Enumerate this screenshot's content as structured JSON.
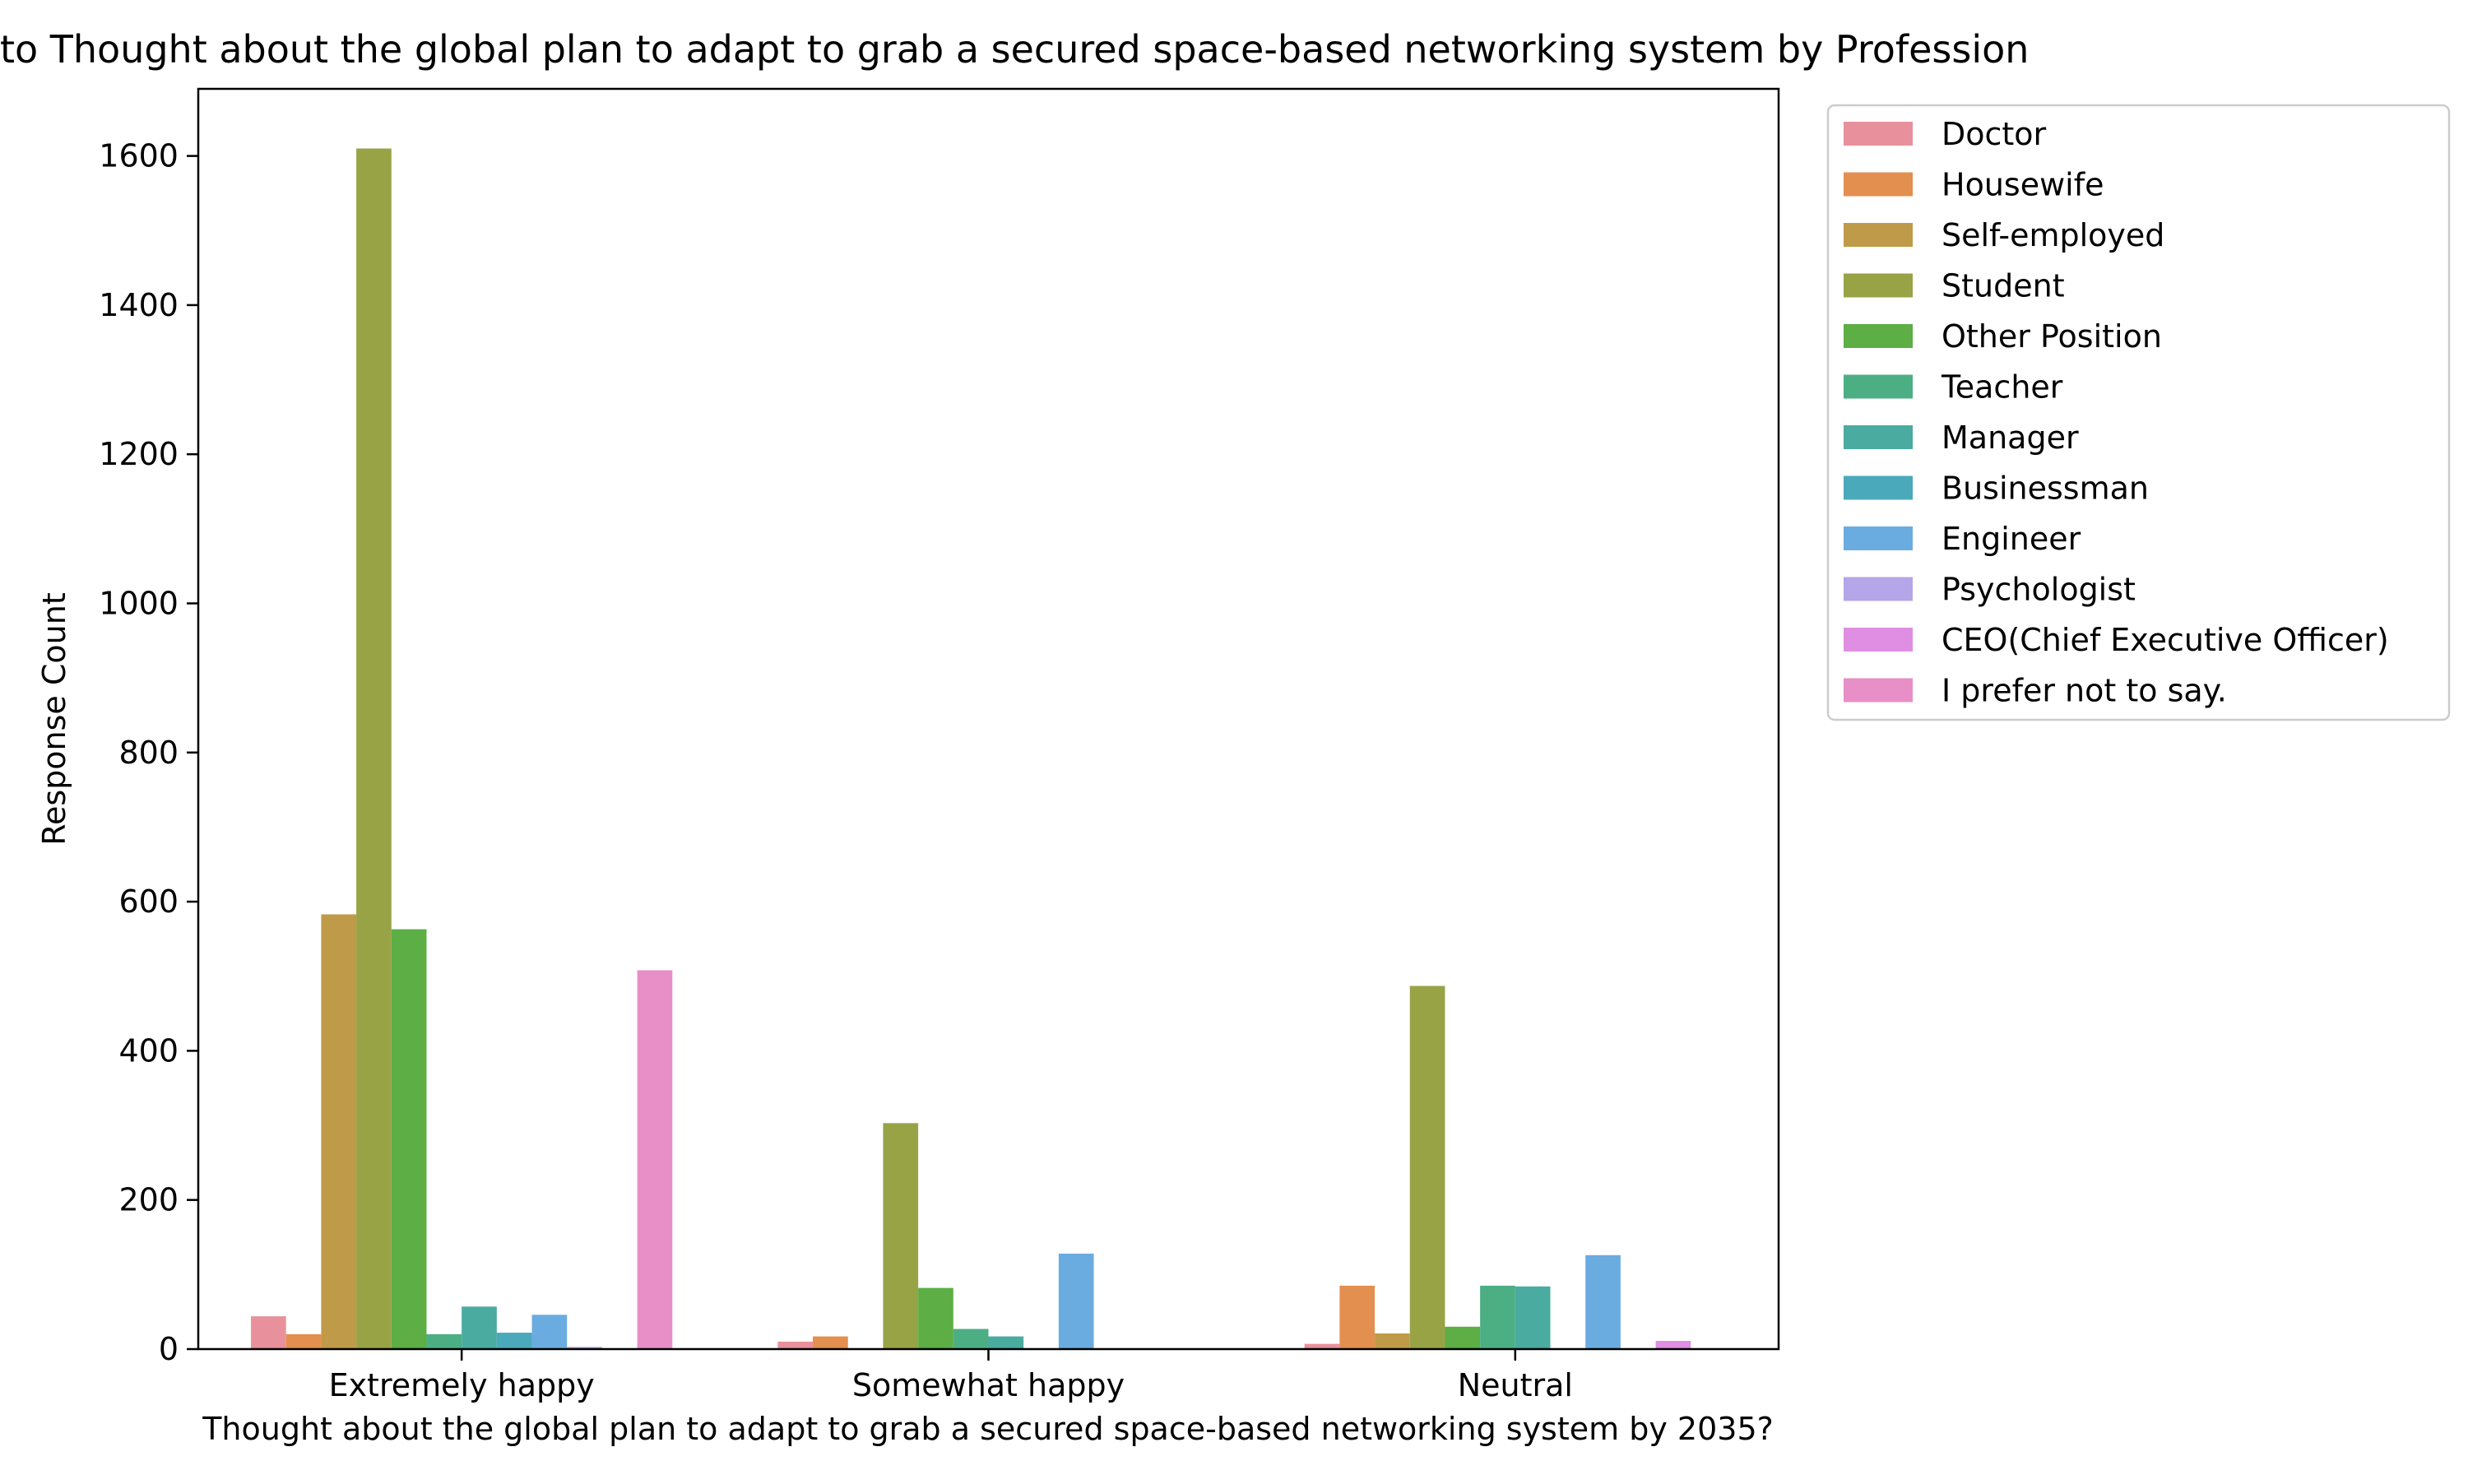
{
  "chart_data": {
    "type": "bar",
    "title": "to Thought about the global plan to adapt to grab a secured space-based networking system by Profession",
    "xlabel": "Thought about the global plan to adapt to grab a secured space-based networking system by 2035?",
    "ylabel": "Response Count",
    "ylim": [
      0,
      1690
    ],
    "yticks": [
      0,
      200,
      400,
      600,
      800,
      1000,
      1200,
      1400,
      1600
    ],
    "grid": false,
    "legend_position": "outside-top-right",
    "categories": [
      "Extremely happy",
      "Somewhat happy",
      "Neutral"
    ],
    "series": [
      {
        "name": "Doctor",
        "color": "#e8919c",
        "values": [
          44,
          10,
          7
        ]
      },
      {
        "name": "Housewife",
        "color": "#e38f4f",
        "values": [
          20,
          17,
          85
        ]
      },
      {
        "name": "Self-employed",
        "color": "#bf9a48",
        "values": [
          583,
          0,
          21
        ]
      },
      {
        "name": "Student",
        "color": "#98a346",
        "values": [
          1610,
          303,
          487
        ]
      },
      {
        "name": "Other Position",
        "color": "#5cae45",
        "values": [
          563,
          82,
          30
        ]
      },
      {
        "name": "Teacher",
        "color": "#4caf84",
        "values": [
          20,
          27,
          85
        ]
      },
      {
        "name": "Manager",
        "color": "#4aaba0",
        "values": [
          57,
          17,
          84
        ]
      },
      {
        "name": "Businessman",
        "color": "#4ba9bc",
        "values": [
          22,
          0,
          0
        ]
      },
      {
        "name": "Engineer",
        "color": "#6aace0",
        "values": [
          46,
          128,
          126
        ]
      },
      {
        "name": "Psychologist",
        "color": "#b4a6e8",
        "values": [
          3,
          0,
          0
        ]
      },
      {
        "name": "CEO(Chief Executive Officer)",
        "color": "#e08ee3",
        "values": [
          0,
          0,
          11
        ]
      },
      {
        "name": "I prefer not to say.",
        "color": "#e78fc6",
        "values": [
          508,
          0,
          0
        ]
      }
    ]
  }
}
